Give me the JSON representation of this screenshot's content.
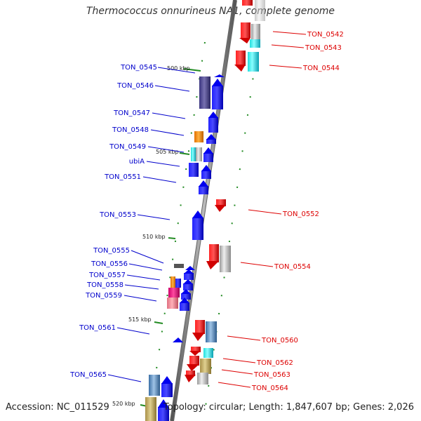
{
  "title": "Thermococcus onnurineus NA1, complete genome",
  "footer": {
    "accession": "Accession: NC_011529",
    "topology": "Topology: circular; Length: 1,847,607 bp; Genes: 2,026"
  },
  "colors": {
    "forward_label": "#0000cc",
    "reverse_label": "#dd0000",
    "backbone": "#888888",
    "tick": "#228b22"
  },
  "scale_labels": [
    "500 kbp",
    "505 kbp",
    "510 kbp",
    "515 kbp",
    "520 kbp"
  ],
  "forward_genes": [
    "TON_0545",
    "TON_0546",
    "TON_0547",
    "TON_0548",
    "TON_0549",
    "ubiA",
    "TON_0551",
    "TON_0553",
    "TON_0555",
    "TON_0556",
    "TON_0557",
    "TON_0558",
    "TON_0559",
    "TON_0561",
    "TON_0565"
  ],
  "reverse_genes": [
    "TON_0542",
    "TON_0543",
    "TON_0544",
    "TON_0552",
    "TON_0554",
    "TON_0560",
    "TON_0562",
    "TON_0563",
    "TON_0564"
  ]
}
